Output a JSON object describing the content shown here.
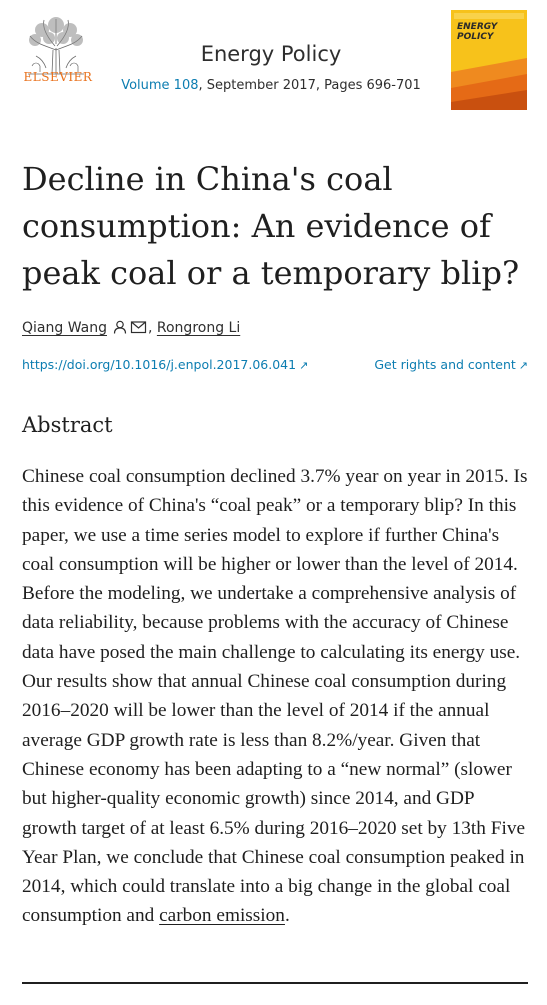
{
  "header": {
    "publisher_logo_text": "ELSEVIER",
    "journal_name": "Energy Policy",
    "volume_link": "Volume 108",
    "issue_info": ", September 2017, Pages 696-701",
    "cover_title": "ENERGY POLICY"
  },
  "article": {
    "title": "Decline in China's coal consumption: An evidence of peak coal or a temporary blip?",
    "authors": [
      {
        "name": "Qiang Wang"
      },
      {
        "name": "Rongrong Li"
      }
    ],
    "author_separator": ",",
    "doi_link": "https://doi.org/10.1016/j.enpol.2017.06.041",
    "rights_link": "Get rights and content"
  },
  "abstract": {
    "heading": "Abstract",
    "text_before_link": "Chinese coal consumption declined 3.7% year on year in 2015. Is this evidence of China's “coal peak” or a temporary blip? In this paper, we use a time series model to explore if further China's coal consumption will be higher or lower than the level of 2014. Before the modeling, we undertake a comprehensive analysis of data reliability, because problems with the accuracy of Chinese data have posed the main challenge to calculating its energy use. Our results show that annual Chinese coal consumption during 2016–2020 will be lower than the level of 2014 if the annual average GDP growth rate is less than 8.2%/year. Given that Chinese economy has been adapting to a “new normal” (slower but higher-quality economic growth) since 2014, and GDP growth target of at least 6.5% during 2016–2020 set by 13th Five Year Plan, we conclude that Chinese coal consumption peaked in 2014, which could translate into a big change in the global coal consumption and ",
    "link_text": "carbon emission",
    "text_after_link": "."
  },
  "colors": {
    "link_blue": "#0c7db1",
    "elsevier_orange": "#e9711c",
    "cover_yellow": "#f7c21b",
    "text": "#1f1f1f"
  },
  "icons": [
    "elsevier-tree-logo",
    "person-icon",
    "envelope-icon",
    "external-link-arrow-icon",
    "journal-cover-thumbnail"
  ]
}
